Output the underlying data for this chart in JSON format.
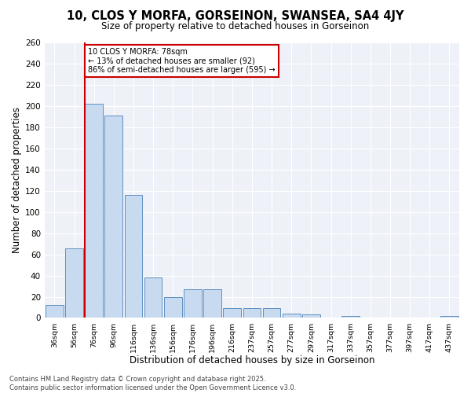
{
  "title_line1": "10, CLOS Y MORFA, GORSEINON, SWANSEA, SA4 4JY",
  "title_line2": "Size of property relative to detached houses in Gorseinon",
  "xlabel": "Distribution of detached houses by size in Gorseinon",
  "ylabel": "Number of detached properties",
  "bar_color": "#c8daf0",
  "bar_edge_color": "#6090c0",
  "highlight_line_color": "#cc0000",
  "categories": [
    "36sqm",
    "56sqm",
    "76sqm",
    "96sqm",
    "116sqm",
    "136sqm",
    "156sqm",
    "176sqm",
    "196sqm",
    "216sqm",
    "237sqm",
    "257sqm",
    "277sqm",
    "297sqm",
    "317sqm",
    "337sqm",
    "357sqm",
    "377sqm",
    "397sqm",
    "417sqm",
    "437sqm"
  ],
  "values": [
    12,
    66,
    202,
    191,
    116,
    38,
    20,
    27,
    27,
    9,
    9,
    9,
    4,
    3,
    0,
    2,
    0,
    0,
    0,
    0,
    2
  ],
  "property_bin_index": 2,
  "annotation_line1": "10 CLOS Y MORFA: 78sqm",
  "annotation_line2": "← 13% of detached houses are smaller (92)",
  "annotation_line3": "86% of semi-detached houses are larger (595) →",
  "annotation_box_color": "#ffffff",
  "annotation_box_edge_color": "#cc0000",
  "ylim": [
    0,
    260
  ],
  "yticks": [
    0,
    20,
    40,
    60,
    80,
    100,
    120,
    140,
    160,
    180,
    200,
    220,
    240,
    260
  ],
  "footer_line1": "Contains HM Land Registry data © Crown copyright and database right 2025.",
  "footer_line2": "Contains public sector information licensed under the Open Government Licence v3.0.",
  "bg_color": "#ffffff",
  "plot_bg_color": "#eef2f8"
}
